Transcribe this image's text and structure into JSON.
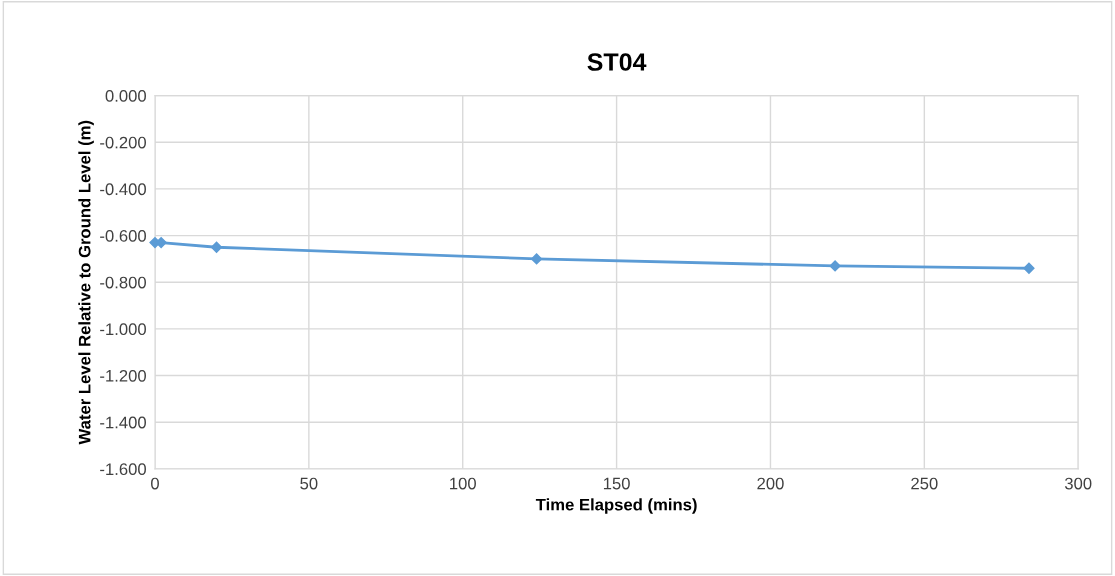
{
  "chart_data": {
    "type": "line",
    "title": "ST04",
    "xlabel": "Time Elapsed (mins)",
    "ylabel": "Water Level Relative to Ground Level (m)",
    "x": [
      0,
      2,
      20,
      124,
      221,
      284
    ],
    "series": [
      {
        "color": "#5b9bd5",
        "values": [
          -0.63,
          -0.63,
          -0.65,
          -0.7,
          -0.73,
          -0.74
        ]
      }
    ],
    "xlim": [
      0,
      300
    ],
    "xticks": [
      0,
      50,
      100,
      150,
      200,
      250,
      300
    ],
    "ylim": [
      -1.6,
      0
    ],
    "yticks": [
      {
        "value": -1.6,
        "label": "-1.600"
      },
      {
        "value": -1.4,
        "label": "-1.400"
      },
      {
        "value": -1.2,
        "label": "-1.200"
      },
      {
        "value": -1.0,
        "label": "-1.000"
      },
      {
        "value": -0.8,
        "label": "-0.800"
      },
      {
        "value": -0.6,
        "label": "-0.600"
      },
      {
        "value": -0.4,
        "label": "-0.400"
      },
      {
        "value": -0.2,
        "label": "-0.200"
      },
      {
        "value": 0,
        "label": "0.000"
      }
    ],
    "grid": true,
    "marker": "diamond",
    "line_style": "solid",
    "legend": false
  }
}
